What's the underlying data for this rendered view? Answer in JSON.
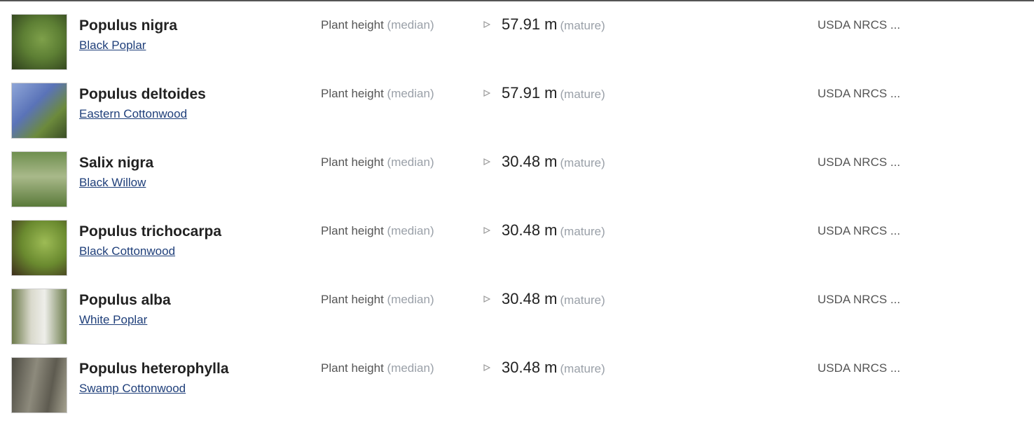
{
  "rows": [
    {
      "scientific_name": "Populus nigra",
      "common_name": "Black Poplar",
      "attribute": "Plant height",
      "qualifier": "(median)",
      "value": "57.91 m",
      "life_stage": "(mature)",
      "source": "USDA NRCS ..."
    },
    {
      "scientific_name": "Populus deltoides",
      "common_name": "Eastern Cottonwood",
      "attribute": "Plant height",
      "qualifier": "(median)",
      "value": "57.91 m",
      "life_stage": "(mature)",
      "source": "USDA NRCS ..."
    },
    {
      "scientific_name": "Salix nigra",
      "common_name": "Black Willow",
      "attribute": "Plant height",
      "qualifier": "(median)",
      "value": "30.48 m",
      "life_stage": "(mature)",
      "source": "USDA NRCS ..."
    },
    {
      "scientific_name": "Populus trichocarpa",
      "common_name": "Black Cottonwood",
      "attribute": "Plant height",
      "qualifier": "(median)",
      "value": "30.48 m",
      "life_stage": "(mature)",
      "source": "USDA NRCS ..."
    },
    {
      "scientific_name": "Populus alba",
      "common_name": "White Poplar",
      "attribute": "Plant height",
      "qualifier": "(median)",
      "value": "30.48 m",
      "life_stage": "(mature)",
      "source": "USDA NRCS ..."
    },
    {
      "scientific_name": "Populus heterophylla",
      "common_name": "Swamp Cottonwood",
      "attribute": "Plant height",
      "qualifier": "(median)",
      "value": "30.48 m",
      "life_stage": "(mature)",
      "source": "USDA NRCS ..."
    }
  ]
}
